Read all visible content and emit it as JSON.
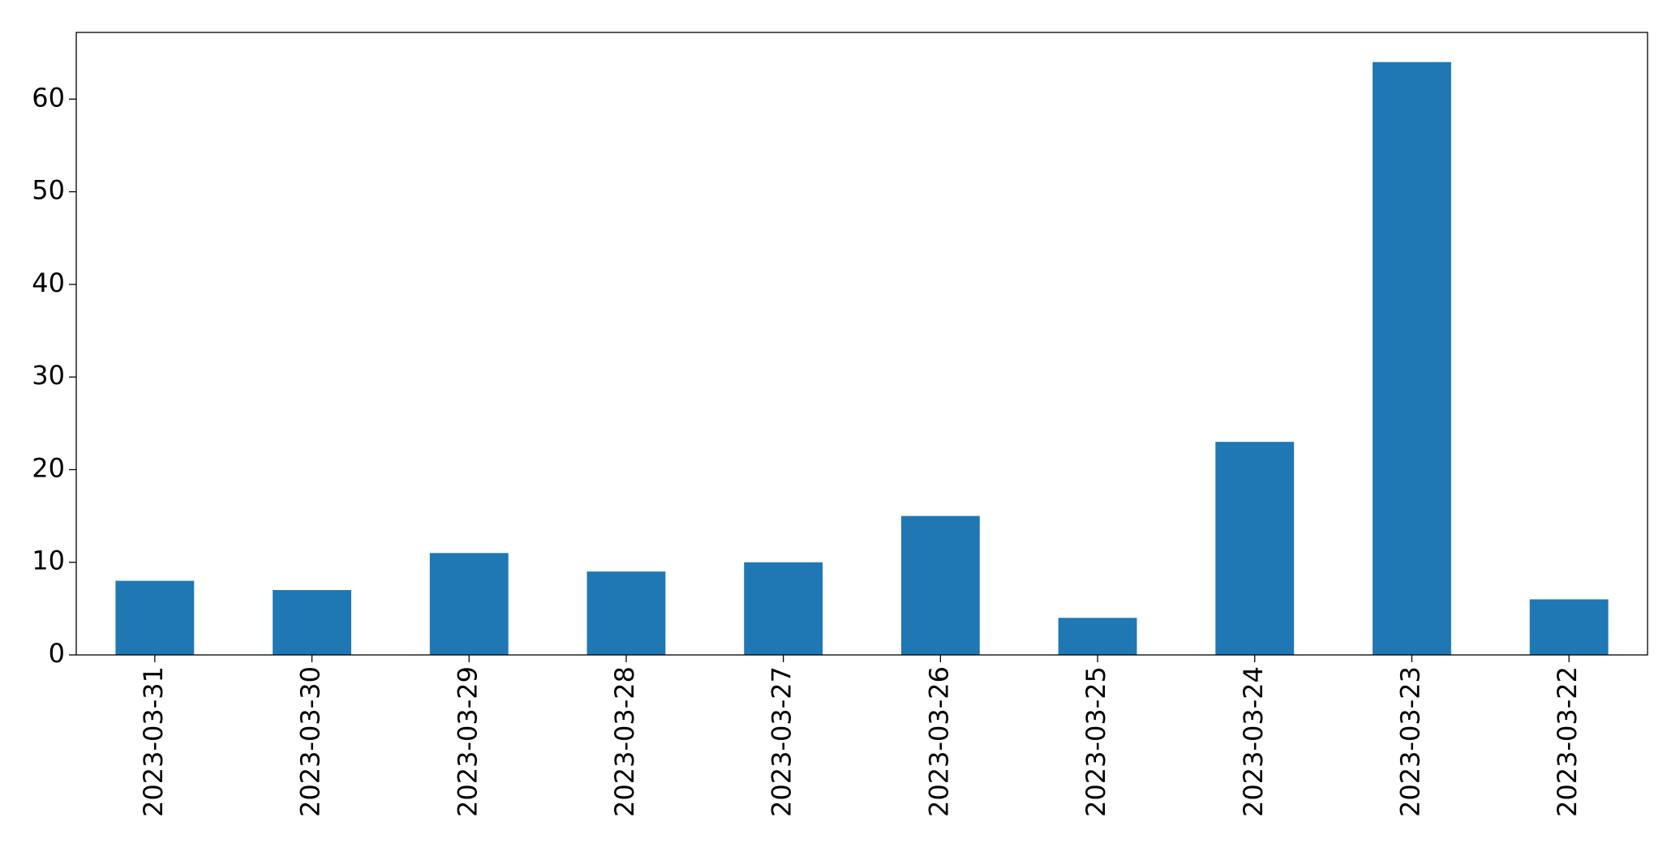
{
  "chart_data": {
    "type": "bar",
    "categories": [
      "2023-03-31",
      "2023-03-30",
      "2023-03-29",
      "2023-03-28",
      "2023-03-27",
      "2023-03-26",
      "2023-03-25",
      "2023-03-24",
      "2023-03-23",
      "2023-03-22"
    ],
    "values": [
      8,
      7,
      11,
      9,
      10,
      15,
      4,
      23,
      64,
      6
    ],
    "color": "#1f77b4",
    "ylim": [
      0,
      67.2
    ],
    "yticks": [
      0,
      10,
      20,
      30,
      40,
      50,
      60
    ],
    "grid": false
  }
}
